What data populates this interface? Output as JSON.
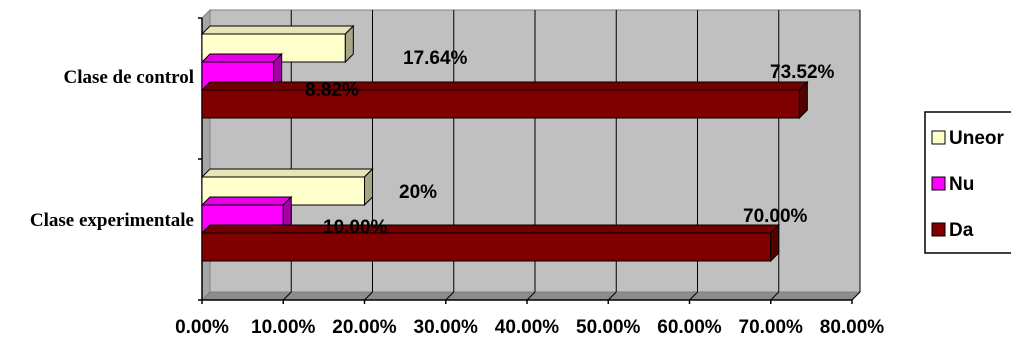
{
  "chart_data": {
    "type": "bar",
    "orientation": "horizontal",
    "style": "3d",
    "categories": [
      "Clase experimentale",
      "Clase de control"
    ],
    "series": [
      {
        "name": "Da",
        "values": [
          70.0,
          73.52
        ],
        "labels": [
          "70.00%",
          "73.52%"
        ],
        "color": "#800000"
      },
      {
        "name": "Nu",
        "values": [
          10.0,
          8.82
        ],
        "labels": [
          "10.00%",
          "8.82%"
        ],
        "color": "#ff00ff"
      },
      {
        "name": "Uneor",
        "values": [
          20.0,
          17.64
        ],
        "labels": [
          "20%",
          "17.64%"
        ],
        "color": "#ffffcc"
      }
    ],
    "xlim": [
      0,
      80
    ],
    "xticks": [
      0,
      10,
      20,
      30,
      40,
      50,
      60,
      70,
      80
    ],
    "xtick_labels": [
      "0.00%",
      "10.00%",
      "20.00%",
      "30.00%",
      "40.00%",
      "50.00%",
      "60.00%",
      "70.00%",
      "80.00%"
    ],
    "grid": "vertical",
    "wall_color": "#c0c0c0",
    "legend_position": "right",
    "legend_order": [
      "Uneor",
      "Nu",
      "Da"
    ],
    "title": "",
    "xlabel": "",
    "ylabel": ""
  }
}
